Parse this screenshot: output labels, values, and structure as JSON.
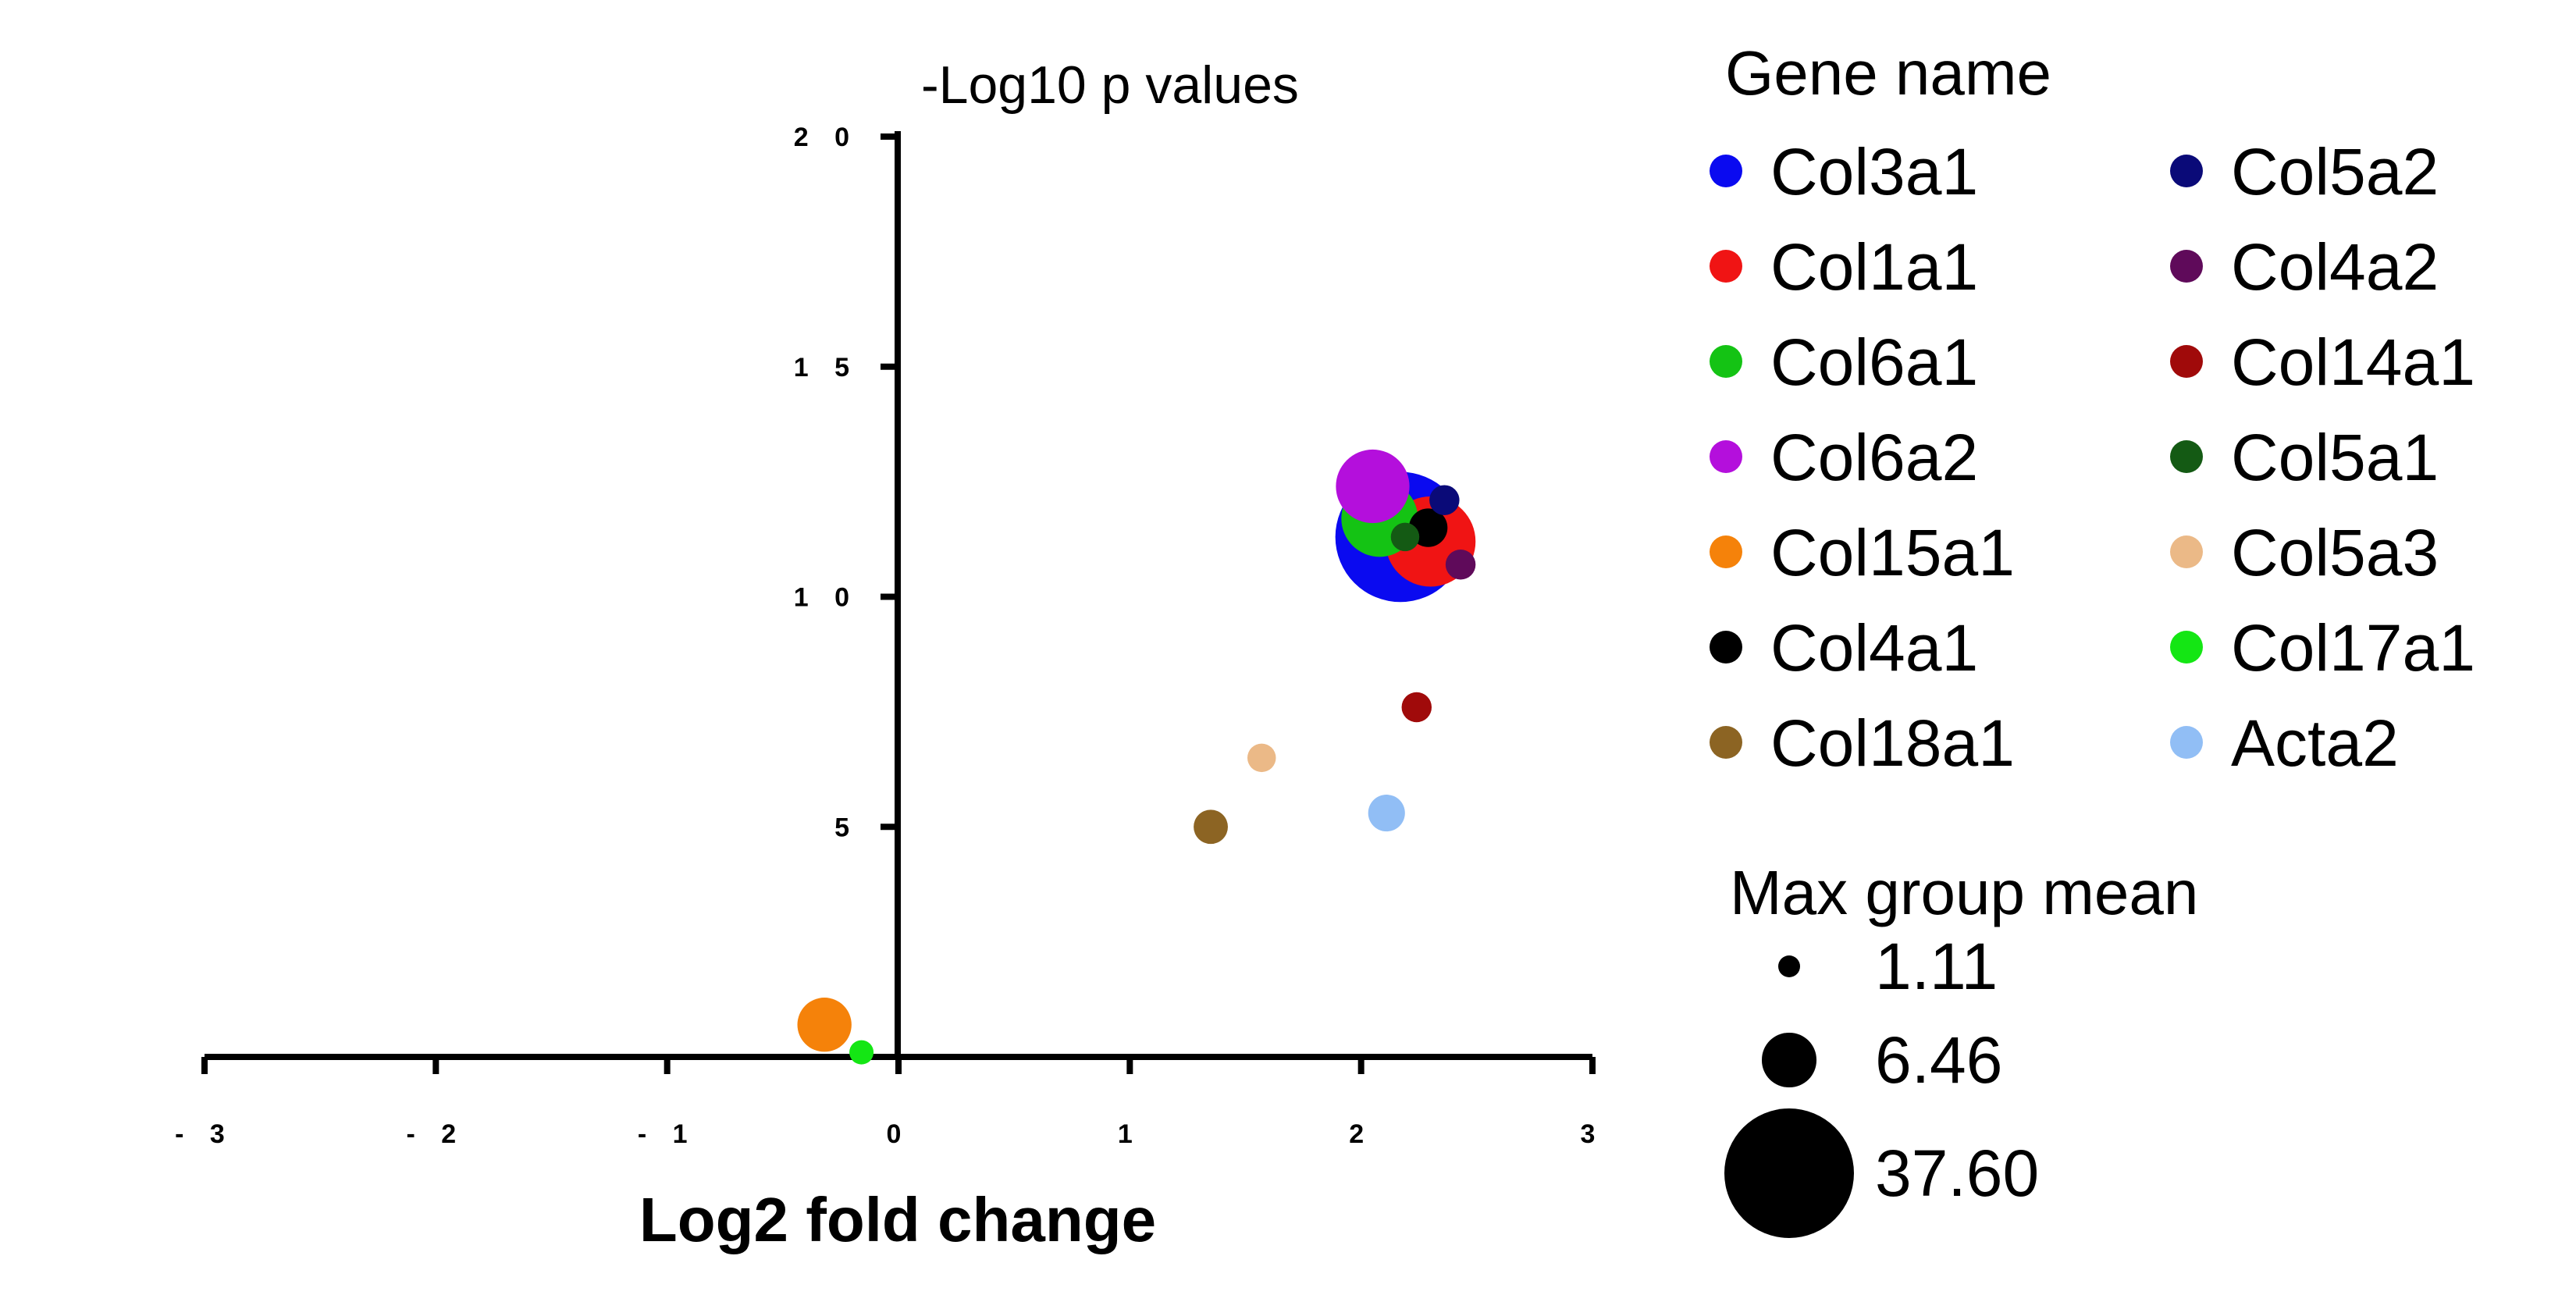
{
  "chart_data": {
    "type": "scatter",
    "title": "",
    "xlabel": "Log2 fold change",
    "ylabel": "-Log10 p values",
    "xlim": [
      -3,
      3
    ],
    "ylim": [
      0,
      20
    ],
    "x_ticks": [
      -3,
      -2,
      -1,
      0,
      1,
      2,
      3
    ],
    "y_ticks": [
      5,
      10,
      15,
      20
    ],
    "x_tick_labels": [
      "- 3",
      "- 2",
      "- 1",
      "0",
      "1",
      "2",
      "3"
    ],
    "y_tick_labels": [
      "5",
      "1 0",
      "1 5",
      "2 0"
    ],
    "grid": false,
    "legend_title": "Gene name",
    "size_legend_title": "Max group mean",
    "size_legend": [
      {
        "label": "1.11",
        "value": 1.11
      },
      {
        "label": "6.46",
        "value": 6.46
      },
      {
        "label": "37.60",
        "value": 37.6
      }
    ],
    "series": [
      {
        "name": "Col3a1",
        "color": "#0a0af0",
        "x": 2.17,
        "y": 11.3,
        "size": 37.6
      },
      {
        "name": "Col1a1",
        "color": "#f01414",
        "x": 2.3,
        "y": 11.2,
        "size": 18.0
      },
      {
        "name": "Col6a1",
        "color": "#14c314",
        "x": 2.08,
        "y": 11.7,
        "size": 13.0
      },
      {
        "name": "Col6a2",
        "color": "#b40fdc",
        "x": 2.05,
        "y": 12.4,
        "size": 12.0
      },
      {
        "name": "Col15a1",
        "color": "#f5820a",
        "x": -0.32,
        "y": 0.7,
        "size": 6.5
      },
      {
        "name": "Col4a1",
        "color": "#000000",
        "x": 2.29,
        "y": 11.5,
        "size": 3.3
      },
      {
        "name": "Col18a1",
        "color": "#8c6423",
        "x": 1.35,
        "y": 5.0,
        "size": 2.6
      },
      {
        "name": "Col5a2",
        "color": "#0a0a78",
        "x": 2.36,
        "y": 12.1,
        "size": 2.0
      },
      {
        "name": "Col4a2",
        "color": "#5f0a5a",
        "x": 2.43,
        "y": 10.7,
        "size": 2.0
      },
      {
        "name": "Col14a1",
        "color": "#a00a0a",
        "x": 2.24,
        "y": 7.6,
        "size": 2.0
      },
      {
        "name": "Col5a1",
        "color": "#145a14",
        "x": 2.19,
        "y": 11.3,
        "size": 1.8
      },
      {
        "name": "Col5a3",
        "color": "#ebb987",
        "x": 1.57,
        "y": 6.5,
        "size": 1.8
      },
      {
        "name": "Col17a1",
        "color": "#14e614",
        "x": -0.16,
        "y": 0.1,
        "size": 1.3
      },
      {
        "name": "Acta2",
        "color": "#91bef5",
        "x": 2.11,
        "y": 5.3,
        "size": 3.0
      }
    ]
  },
  "legend_columns": [
    [
      "Col3a1",
      "Col1a1",
      "Col6a1",
      "Col6a2",
      "Col15a1",
      "Col4a1",
      "Col18a1"
    ],
    [
      "Col5a2",
      "Col4a2",
      "Col14a1",
      "Col5a1",
      "Col5a3",
      "Col17a1",
      "Acta2"
    ]
  ]
}
